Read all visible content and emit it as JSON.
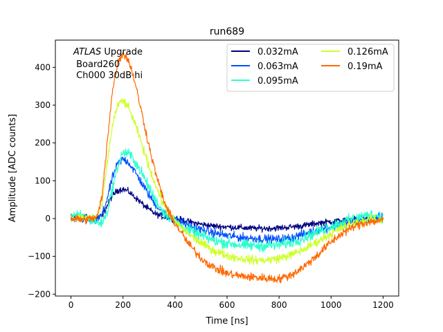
{
  "chart_data": {
    "type": "line",
    "title": "run689",
    "xlabel": "Time [ns]",
    "ylabel": "Amplitude [ADC counts]",
    "xlim": [
      -60,
      1260
    ],
    "ylim": [
      -205,
      472
    ],
    "xticks": [
      0,
      200,
      400,
      600,
      800,
      1000,
      1200
    ],
    "yticks": [
      -200,
      -100,
      0,
      100,
      200,
      300,
      400
    ],
    "annotation": {
      "prefix": "ATLAS",
      "suffix": " Upgrade",
      "line2": " Board260",
      "line3": " Ch000 30dB hi"
    },
    "legend_position": "upper-right",
    "legend_columns": 2,
    "series": [
      {
        "name": "0.032mA",
        "color": "#000080",
        "x": [
          0,
          50,
          100,
          120,
          140,
          160,
          180,
          200,
          220,
          240,
          260,
          280,
          300,
          320,
          340,
          360,
          380,
          400,
          450,
          500,
          550,
          600,
          650,
          700,
          750,
          800,
          850,
          900,
          950,
          1000,
          1050,
          1100,
          1150,
          1200
        ],
        "values": [
          5,
          3,
          2,
          8,
          35,
          62,
          75,
          78,
          72,
          60,
          48,
          35,
          24,
          14,
          8,
          4,
          2,
          0,
          -8,
          -15,
          -20,
          -22,
          -24,
          -26,
          -26,
          -25,
          -22,
          -18,
          -12,
          -8,
          -5,
          -3,
          -2,
          -5
        ]
      },
      {
        "name": "0.063mA",
        "color": "#0050ff",
        "x": [
          0,
          50,
          100,
          120,
          140,
          160,
          180,
          200,
          220,
          240,
          260,
          280,
          300,
          320,
          340,
          360,
          380,
          400,
          450,
          500,
          550,
          600,
          650,
          700,
          750,
          800,
          850,
          900,
          950,
          1000,
          1050,
          1100,
          1150,
          1200
        ],
        "values": [
          0,
          -2,
          -5,
          10,
          55,
          110,
          145,
          158,
          150,
          130,
          108,
          85,
          62,
          42,
          25,
          12,
          4,
          -2,
          -18,
          -30,
          -38,
          -45,
          -50,
          -52,
          -54,
          -55,
          -50,
          -40,
          -30,
          -22,
          -12,
          -5,
          0,
          2
        ]
      },
      {
        "name": "0.095mA",
        "color": "#29ffce",
        "x": [
          0,
          50,
          100,
          120,
          140,
          160,
          180,
          200,
          220,
          240,
          260,
          280,
          300,
          320,
          340,
          360,
          380,
          400,
          450,
          500,
          550,
          600,
          650,
          700,
          750,
          800,
          850,
          900,
          950,
          1000,
          1050,
          1100,
          1150,
          1200
        ],
        "values": [
          10,
          5,
          -10,
          -12,
          20,
          80,
          140,
          175,
          172,
          158,
          135,
          110,
          82,
          55,
          32,
          14,
          2,
          -8,
          -30,
          -45,
          -58,
          -65,
          -70,
          -72,
          -72,
          -70,
          -62,
          -50,
          -35,
          -20,
          -8,
          2,
          10,
          5
        ]
      },
      {
        "name": "0.126mA",
        "color": "#ceff29",
        "x": [
          0,
          50,
          100,
          120,
          140,
          160,
          180,
          200,
          220,
          240,
          260,
          280,
          300,
          320,
          340,
          360,
          380,
          400,
          450,
          500,
          550,
          600,
          650,
          700,
          750,
          800,
          850,
          900,
          950,
          1000,
          1050,
          1100,
          1150,
          1200
        ],
        "values": [
          0,
          2,
          5,
          40,
          150,
          250,
          300,
          312,
          295,
          262,
          222,
          180,
          138,
          98,
          62,
          32,
          10,
          -8,
          -40,
          -65,
          -85,
          -98,
          -105,
          -110,
          -110,
          -105,
          -95,
          -80,
          -60,
          -40,
          -22,
          -10,
          -2,
          -5
        ]
      },
      {
        "name": "0.19mA",
        "color": "#ff6800",
        "x": [
          0,
          50,
          100,
          120,
          140,
          160,
          180,
          200,
          220,
          240,
          260,
          280,
          300,
          320,
          340,
          360,
          380,
          400,
          450,
          500,
          550,
          600,
          650,
          700,
          750,
          800,
          850,
          900,
          950,
          1000,
          1050,
          1100,
          1150,
          1200
        ],
        "values": [
          0,
          -3,
          2,
          60,
          210,
          340,
          415,
          438,
          420,
          378,
          318,
          255,
          192,
          135,
          85,
          42,
          10,
          -12,
          -65,
          -105,
          -130,
          -145,
          -152,
          -155,
          -158,
          -160,
          -148,
          -125,
          -95,
          -62,
          -35,
          -18,
          -8,
          -5
        ]
      }
    ]
  }
}
